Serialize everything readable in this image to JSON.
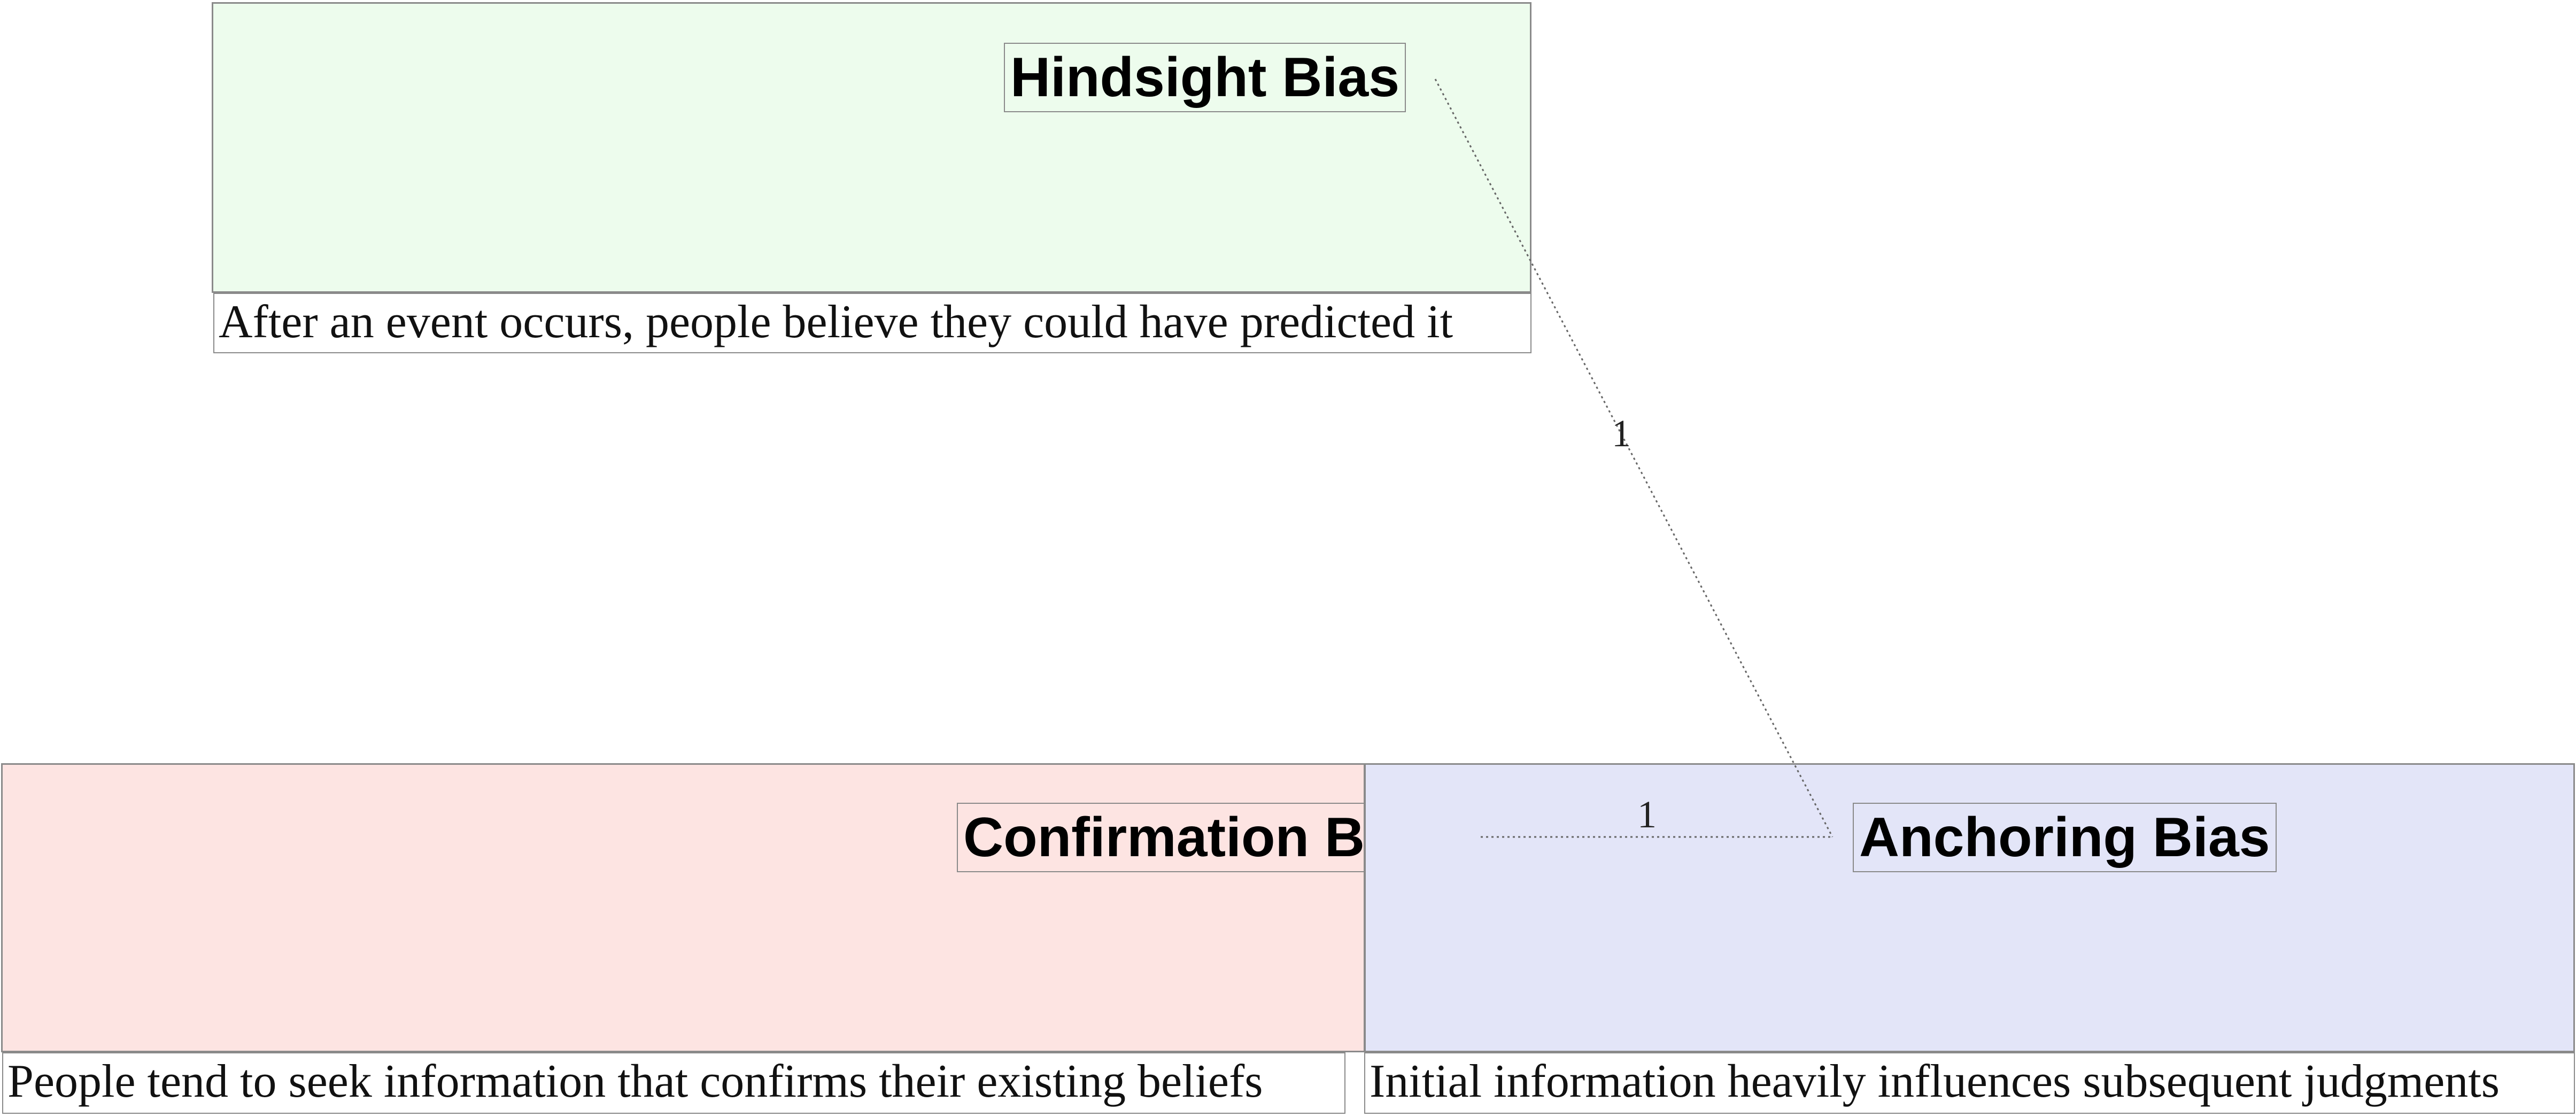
{
  "nodes": {
    "hindsight": {
      "title": "Hindsight Bias",
      "description": "After an event occurs, people believe they could have predicted it",
      "color": "#edfced"
    },
    "confirmation": {
      "title": "Confirmation Bias",
      "description": "People tend to seek information that confirms their existing beliefs",
      "color": "#fde4e2"
    },
    "anchoring": {
      "title": "Anchoring Bias",
      "description": "Initial information heavily influences subsequent judgments",
      "color": "#e3e5f8"
    }
  },
  "edges": [
    {
      "from": "Hindsight Bias",
      "to": "Anchoring Bias",
      "label": "1"
    },
    {
      "from": "Confirmation Bias",
      "to": "Anchoring Bias",
      "label": "1"
    }
  ],
  "colors": {
    "border": "#8a8a8a",
    "edge": "#666666"
  }
}
